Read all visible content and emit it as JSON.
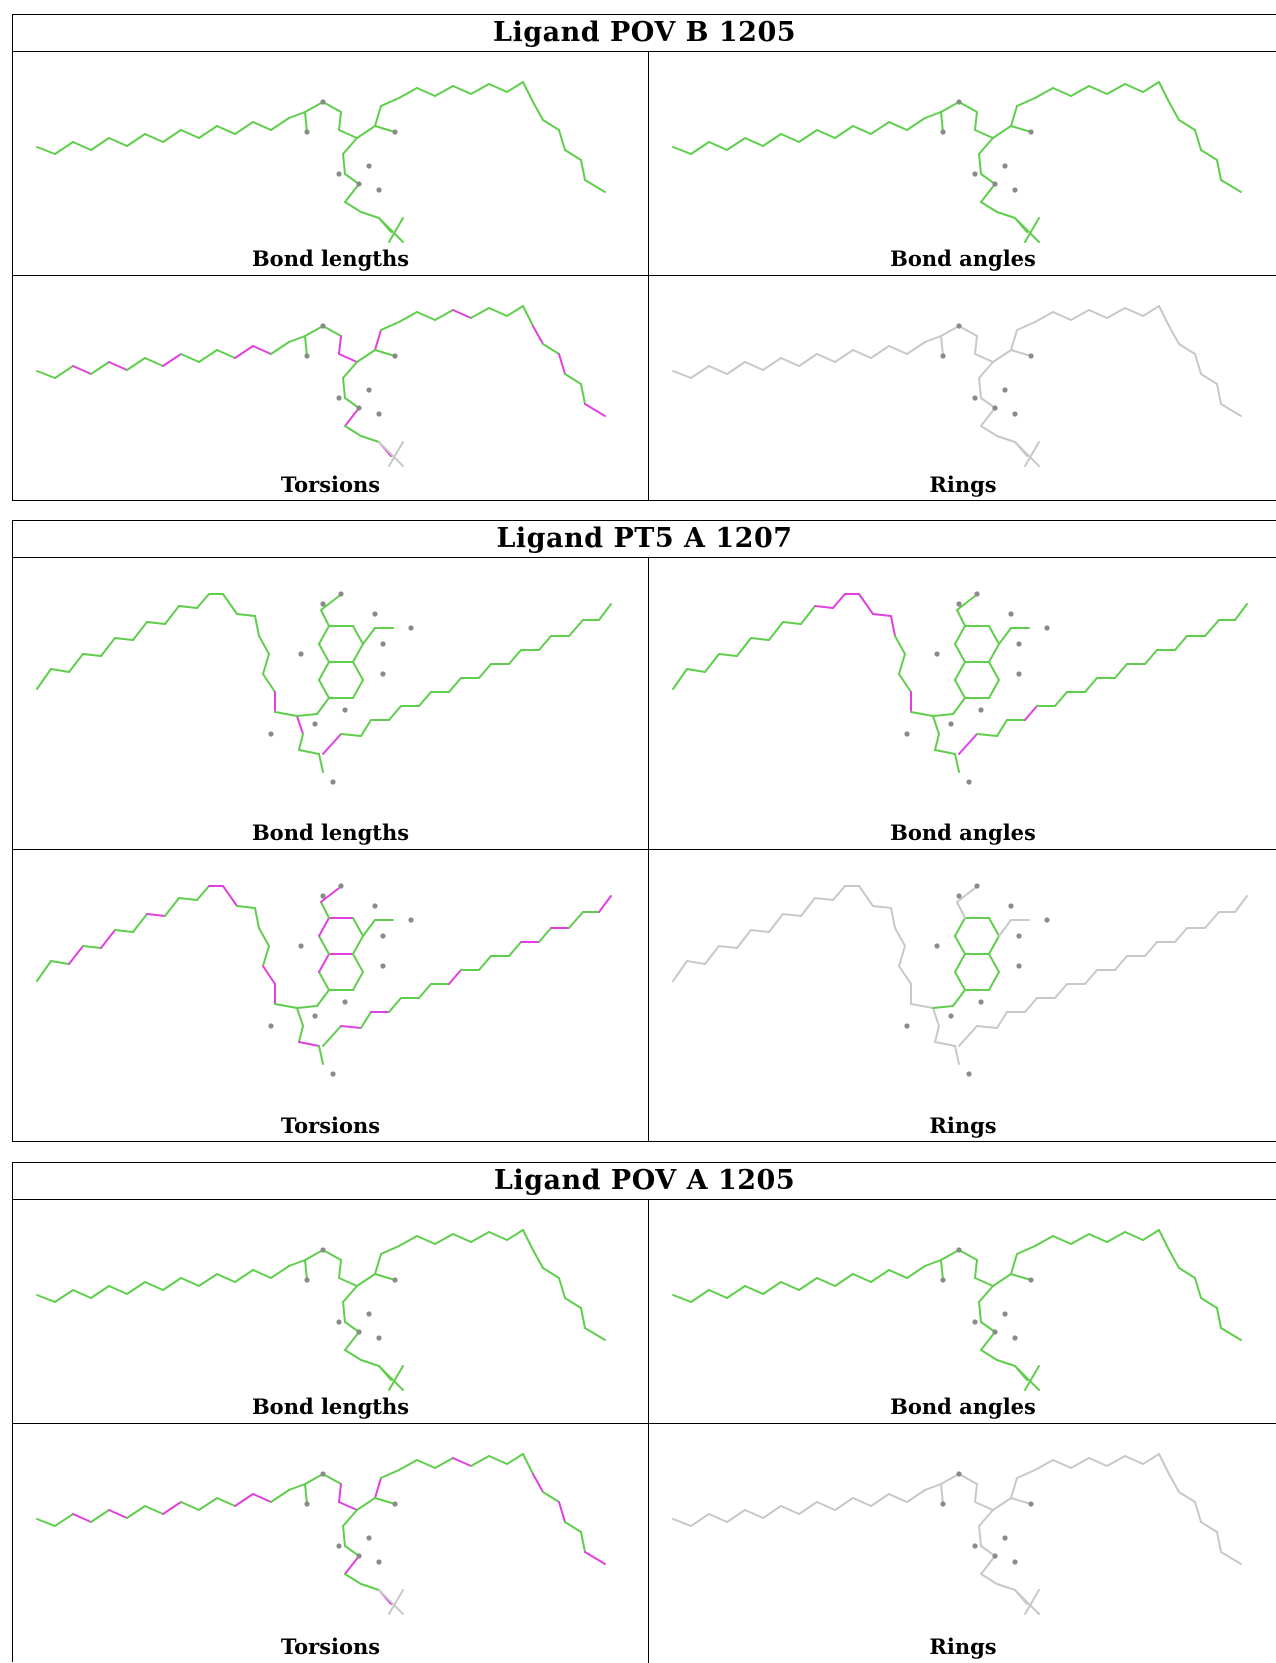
{
  "colors": {
    "ok": "#5fce4c",
    "outlier": "#e040e0",
    "none": "#c8c8c8",
    "atom": "#8a8a8a"
  },
  "panel_labels": [
    "Bond lengths",
    "Bond angles",
    "Torsions",
    "Rings"
  ],
  "ligands": [
    {
      "title": "Ligand POV B 1205",
      "molecule": "pov",
      "panels": [
        {
          "label": "Bond lengths",
          "mode": "allgreen"
        },
        {
          "label": "Bond angles",
          "mode": "allgreen"
        },
        {
          "label": "Torsions",
          "mode": "torsion"
        },
        {
          "label": "Rings",
          "mode": "none"
        }
      ]
    },
    {
      "title": "Ligand PT5 A 1207",
      "molecule": "pt5",
      "panels": [
        {
          "label": "Bond lengths",
          "mode": "lengths"
        },
        {
          "label": "Bond angles",
          "mode": "angles"
        },
        {
          "label": "Torsions",
          "mode": "torsion"
        },
        {
          "label": "Rings",
          "mode": "rings"
        }
      ]
    },
    {
      "title": "Ligand POV A 1205",
      "molecule": "pov",
      "panels": [
        {
          "label": "Bond lengths",
          "mode": "allgreen"
        },
        {
          "label": "Bond angles",
          "mode": "allgreen"
        },
        {
          "label": "Torsions",
          "mode": "torsion"
        },
        {
          "label": "Rings",
          "mode": "none"
        }
      ]
    }
  ]
}
